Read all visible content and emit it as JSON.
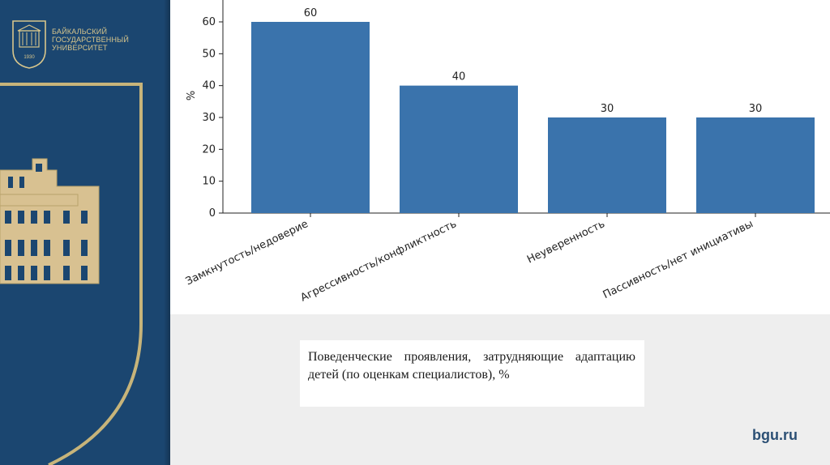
{
  "logo": {
    "lines": [
      "БАЙКАЛЬСКИЙ",
      "ГОСУДАРСТВЕННЫЙ",
      "УНИВЕРСИТЕТ"
    ],
    "year": "1930"
  },
  "chart_data": {
    "type": "bar",
    "categories": [
      "Замкнутость/недоверие",
      "Агрессивность/конфликтность",
      "Неуверенность",
      "Пассивность/нет инициативы"
    ],
    "values": [
      60,
      40,
      30,
      30
    ],
    "data_labels": [
      "60",
      "40",
      "30",
      "30"
    ],
    "ylabel": "%",
    "ylim": [
      0,
      65
    ],
    "yticks": [
      0,
      10,
      20,
      30,
      40,
      50,
      60
    ],
    "bar_color": "#3a73ac",
    "grid": false
  },
  "caption": "Поведенческие проявления, затрудняющие адаптацию детей (по оценкам специалистов), %",
  "site": "bgu.ru",
  "colors": {
    "panel": "#1b4670",
    "gold": "#d8c68c",
    "accent": "#3a73ac"
  }
}
